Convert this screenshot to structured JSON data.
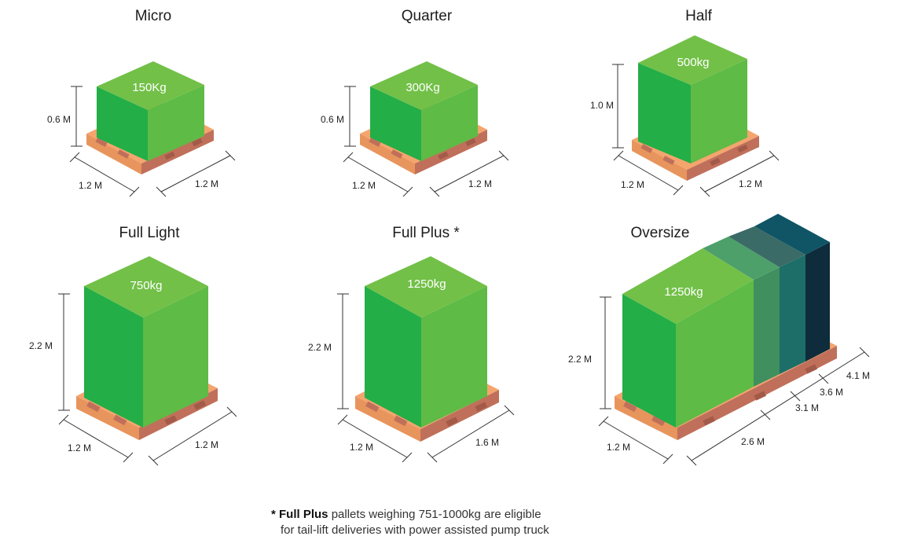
{
  "colors": {
    "box_top": "#72c048",
    "box_left": "#23ae47",
    "box_right": "#5ebb45",
    "pallet_light": "#f4a56e",
    "pallet_dark": "#c0705a",
    "oversize_stripes": [
      "#3f8f5f",
      "#1d6e68",
      "#0f5566",
      "#0e2c3b"
    ]
  },
  "panels": [
    {
      "name": "Micro",
      "weight": "150Kg",
      "height": "0.6 M",
      "left_dim": "1.2 M",
      "right_dim": "1.2 M"
    },
    {
      "name": "Quarter",
      "weight": "300Kg",
      "height": "0.6 M",
      "left_dim": "1.2 M",
      "right_dim": "1.2 M"
    },
    {
      "name": "Half",
      "weight": "500kg",
      "height": "1.0 M",
      "left_dim": "1.2 M",
      "right_dim": "1.2 M"
    },
    {
      "name": "Full Light",
      "weight": "750kg",
      "height": "2.2 M",
      "left_dim": "1.2 M",
      "right_dim": "1.2 M"
    },
    {
      "name": "Full Plus *",
      "weight": "1250kg",
      "height": "2.2 M",
      "left_dim": "1.2 M",
      "right_dim": "1.6 M"
    },
    {
      "name": "Oversize",
      "weight": "1250kg",
      "height": "2.2 M",
      "left_dim": "1.2 M",
      "right_dim": "2.6 M",
      "extra_dims": [
        "3.1 M",
        "3.6 M",
        "4.1 M"
      ]
    }
  ],
  "footnote": {
    "star": "*",
    "bold": "Full Plus",
    "line1": "pallets weighing 751-1000kg are eligible",
    "line2": "for tail-lift deliveries with power assisted pump truck"
  }
}
